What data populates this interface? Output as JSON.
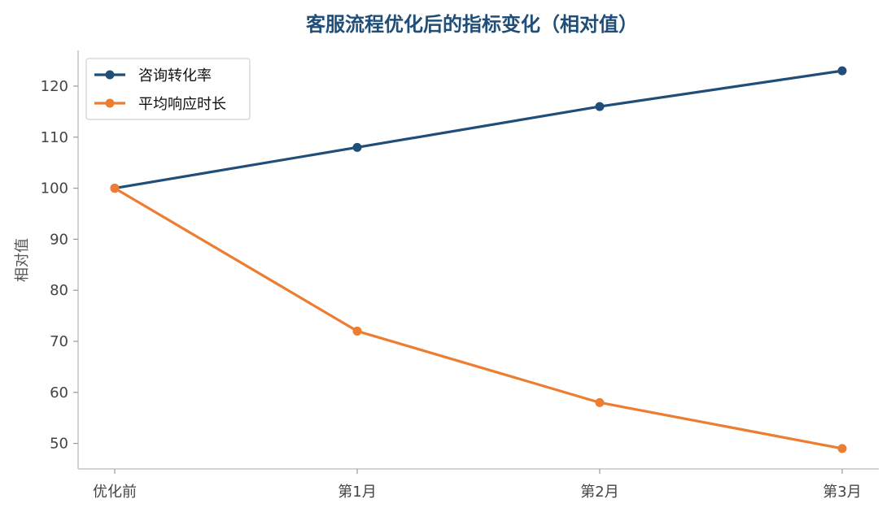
{
  "chart_data": {
    "type": "line",
    "title": "客服流程优化后的指标变化（相对值）",
    "xlabel": "",
    "ylabel": "相对值",
    "categories": [
      "优化前",
      "第1月",
      "第2月",
      "第3月"
    ],
    "ylim": [
      45,
      127
    ],
    "yticks": [
      50,
      60,
      70,
      80,
      90,
      100,
      110,
      120
    ],
    "grid": false,
    "legend_position": "top-left",
    "title_color": "#1F4E79",
    "series": [
      {
        "name": "咨询转化率",
        "values": [
          100,
          108,
          116,
          123
        ],
        "color": "#1F4E79"
      },
      {
        "name": "平均响应时长",
        "values": [
          100,
          72,
          58,
          49
        ],
        "color": "#ED7D31"
      }
    ]
  }
}
